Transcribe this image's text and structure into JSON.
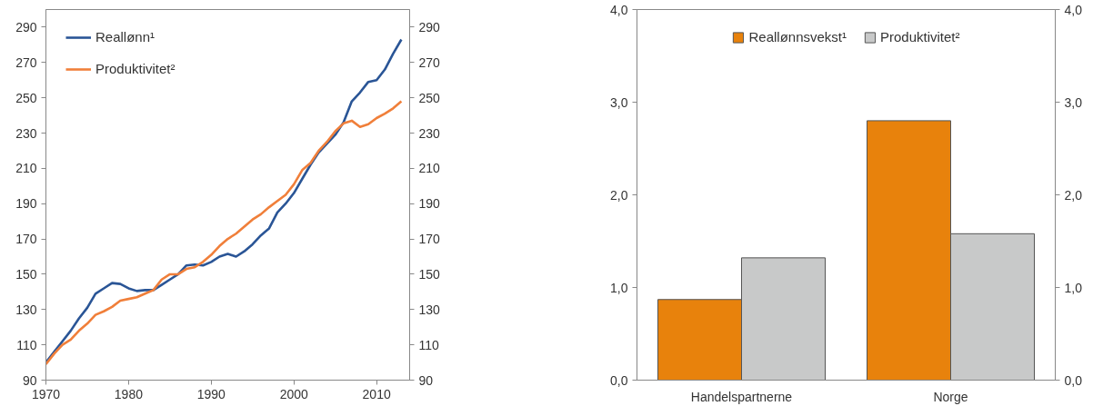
{
  "chart_data": [
    {
      "type": "line",
      "x": [
        1970,
        1971,
        1972,
        1973,
        1974,
        1975,
        1976,
        1977,
        1978,
        1979,
        1980,
        1981,
        1982,
        1983,
        1984,
        1985,
        1986,
        1987,
        1988,
        1989,
        1990,
        1991,
        1992,
        1993,
        1994,
        1995,
        1996,
        1997,
        1998,
        1999,
        2000,
        2001,
        2002,
        2003,
        2004,
        2005,
        2006,
        2007,
        2008,
        2009,
        2010,
        2011,
        2012,
        2013
      ],
      "series": [
        {
          "name": "Reallønn¹",
          "color": "#2a5596",
          "values": [
            100,
            106,
            112,
            118,
            125,
            131,
            139,
            142,
            145,
            144.5,
            142,
            140.5,
            141,
            141,
            144,
            147,
            150,
            155,
            155.5,
            155,
            157,
            160,
            161.5,
            160,
            163,
            167,
            172,
            176,
            185,
            190,
            196,
            204,
            212,
            219,
            224,
            229,
            236,
            248,
            253,
            259,
            260,
            266,
            275,
            283
          ]
        },
        {
          "name": "Produktivitet²",
          "color": "#f07f3a",
          "values": [
            99,
            105,
            110,
            113,
            118,
            122,
            127,
            129,
            131.5,
            135,
            136,
            137,
            139,
            141,
            147,
            150,
            150,
            153,
            154,
            157,
            161,
            166,
            170,
            173,
            177,
            181,
            184,
            188,
            191.5,
            195,
            201,
            209,
            213,
            220,
            225,
            231,
            235.5,
            237,
            233.5,
            235,
            238.5,
            241,
            244,
            248
          ]
        }
      ],
      "xlim": [
        1970,
        2014
      ],
      "xticks": [
        1970,
        1980,
        1990,
        2000,
        2010
      ],
      "ylim": [
        90,
        300
      ],
      "yticks": [
        90,
        110,
        130,
        150,
        170,
        190,
        210,
        230,
        250,
        270,
        290
      ],
      "y2lim": [
        90,
        300
      ],
      "y2ticks": [
        90,
        110,
        130,
        150,
        170,
        190,
        210,
        230,
        250,
        270,
        290
      ],
      "legend": "top left",
      "grid": false
    },
    {
      "type": "bar",
      "categories": [
        "Handelspartnerne",
        "Norge"
      ],
      "series": [
        {
          "name": "Reallønnsvekst¹",
          "color": "#e8820c",
          "values": [
            0.87,
            2.8
          ]
        },
        {
          "name": "Produktivitet²",
          "color": "#c8c9c9",
          "values": [
            1.32,
            1.58
          ]
        }
      ],
      "ylim": [
        0,
        4
      ],
      "yticks": [
        {
          "value": 0,
          "label": "0,0"
        },
        {
          "value": 1,
          "label": "1,0"
        },
        {
          "value": 2,
          "label": "2,0"
        },
        {
          "value": 3,
          "label": "3,0"
        },
        {
          "value": 4,
          "label": "4,0"
        }
      ],
      "y2lim": [
        0,
        4
      ],
      "y2ticks": [
        {
          "value": 0,
          "label": "0,0"
        },
        {
          "value": 1,
          "label": "1,0"
        },
        {
          "value": 2,
          "label": "2,0"
        },
        {
          "value": 3,
          "label": "3,0"
        },
        {
          "value": 4,
          "label": "4,0"
        }
      ],
      "legend": "top",
      "grid": false
    }
  ]
}
